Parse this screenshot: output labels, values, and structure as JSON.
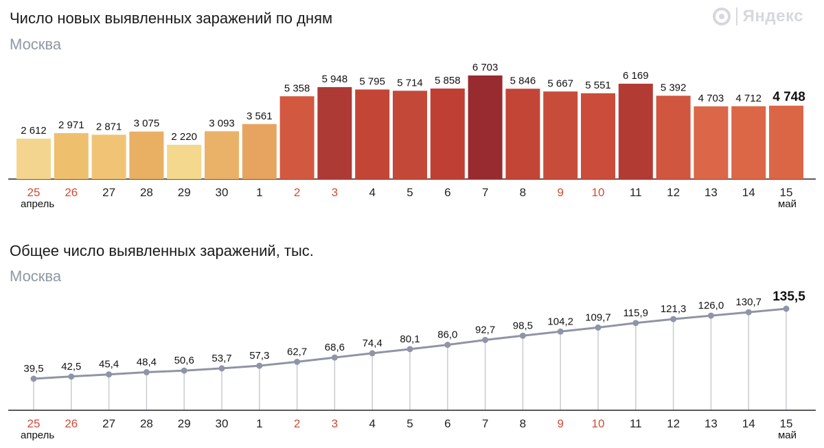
{
  "brand": {
    "name": "Яндекс",
    "icon": "yandex-logo-icon"
  },
  "colors": {
    "weekend": "#d14b35",
    "weekday": "#222222",
    "axis": "#222222",
    "line": "#8f94a6",
    "stem": "#c9cbd3",
    "bars": [
      "#f3d58f",
      "#eebf6d",
      "#f0c474",
      "#e9b063",
      "#f3d88e",
      "#eab269",
      "#e7a461",
      "#d25840",
      "#ae3a35",
      "#c34536",
      "#c44838",
      "#c03f34",
      "#982b2f",
      "#c24536",
      "#c84c3a",
      "#cb4c3b",
      "#b23b34",
      "#d0563f",
      "#dc6748",
      "#dc6747",
      "#db6646"
    ]
  },
  "chart_data": [
    {
      "type": "bar",
      "title": "Число новых выявленных заражений по дням",
      "subtitle": "Москва",
      "categories": [
        "25",
        "26",
        "27",
        "28",
        "29",
        "30",
        "1",
        "2",
        "3",
        "4",
        "5",
        "6",
        "7",
        "8",
        "9",
        "10",
        "11",
        "12",
        "13",
        "14",
        "15"
      ],
      "weekend_flags": [
        true,
        true,
        false,
        false,
        false,
        false,
        false,
        true,
        true,
        false,
        false,
        false,
        false,
        false,
        true,
        true,
        false,
        false,
        false,
        false,
        false
      ],
      "values": [
        2612,
        2971,
        2871,
        3075,
        2220,
        3093,
        3561,
        5358,
        5948,
        5795,
        5714,
        5858,
        6703,
        5846,
        5667,
        5551,
        6169,
        5392,
        4703,
        4712,
        4748
      ],
      "value_labels": [
        "2 612",
        "2 971",
        "2 871",
        "3 075",
        "2 220",
        "3 093",
        "3 561",
        "5 358",
        "5 948",
        "5 795",
        "5 714",
        "5 858",
        "6 703",
        "5 846",
        "5 667",
        "5 551",
        "6 169",
        "5 392",
        "4 703",
        "4 712",
        "4 748"
      ],
      "month_labels": {
        "start": "апрель",
        "end": "май"
      },
      "ylim": [
        0,
        6703
      ]
    },
    {
      "type": "line",
      "title": "Общее число выявленных заражений, тыс.",
      "subtitle": "Москва",
      "categories": [
        "25",
        "26",
        "27",
        "28",
        "29",
        "30",
        "1",
        "2",
        "3",
        "4",
        "5",
        "6",
        "7",
        "8",
        "9",
        "10",
        "11",
        "12",
        "13",
        "14",
        "15"
      ],
      "weekend_flags": [
        true,
        true,
        false,
        false,
        false,
        false,
        false,
        true,
        true,
        false,
        false,
        false,
        false,
        false,
        true,
        true,
        false,
        false,
        false,
        false,
        false
      ],
      "values": [
        39.5,
        42.5,
        45.4,
        48.4,
        50.6,
        53.7,
        57.3,
        62.7,
        68.6,
        74.4,
        80.1,
        86.0,
        92.7,
        98.5,
        104.2,
        109.7,
        115.9,
        121.3,
        126.0,
        130.7,
        135.5
      ],
      "value_labels": [
        "39,5",
        "42,5",
        "45,4",
        "48,4",
        "50,6",
        "53,7",
        "57,3",
        "62,7",
        "68,6",
        "74,4",
        "80,1",
        "86,0",
        "92,7",
        "98,5",
        "104,2",
        "109,7",
        "115,9",
        "121,3",
        "126,0",
        "130,7",
        "135,5"
      ],
      "month_labels": {
        "start": "апрель",
        "end": "май"
      },
      "ylim": [
        39.5,
        135.5
      ]
    }
  ]
}
